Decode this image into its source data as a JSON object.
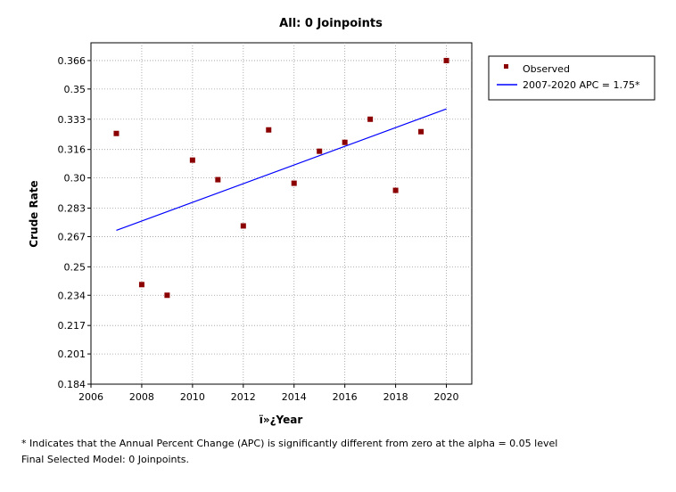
{
  "chart_data": {
    "type": "scatter",
    "title": "All: 0 Joinpoints",
    "xlabel": "ï»¿Year",
    "ylabel": "Crude Rate",
    "xlim": [
      2006,
      2021
    ],
    "ylim": [
      0.184,
      0.376
    ],
    "x_ticks": [
      "2006",
      "2008",
      "2010",
      "2012",
      "2014",
      "2016",
      "2018",
      "2020"
    ],
    "y_ticks": [
      "0.366",
      "0.35",
      "0.333",
      "0.316",
      "0.30",
      "0.283",
      "0.267",
      "0.25",
      "0.234",
      "0.217",
      "0.201",
      "0.184"
    ],
    "grid": true,
    "legend_position": "top-right",
    "series": [
      {
        "name": "Observed",
        "kind": "points",
        "color": "#8b0000",
        "x": [
          2007,
          2008,
          2009,
          2010,
          2011,
          2012,
          2013,
          2014,
          2015,
          2016,
          2017,
          2018,
          2019,
          2020
        ],
        "y": [
          0.325,
          0.24,
          0.234,
          0.31,
          0.299,
          0.273,
          0.327,
          0.297,
          0.315,
          0.32,
          0.333,
          0.293,
          0.326,
          0.366
        ]
      },
      {
        "name": "2007-2020 APC  = 1.75*",
        "kind": "line",
        "color": "#0000ff",
        "x": [
          2007,
          2020
        ],
        "y": [
          0.2705,
          0.3388
        ]
      }
    ]
  },
  "footnotes": {
    "line1": "* Indicates that the Annual Percent Change (APC) is significantly different from zero at the alpha = 0.05 level",
    "line2": "Final Selected Model: 0 Joinpoints."
  }
}
